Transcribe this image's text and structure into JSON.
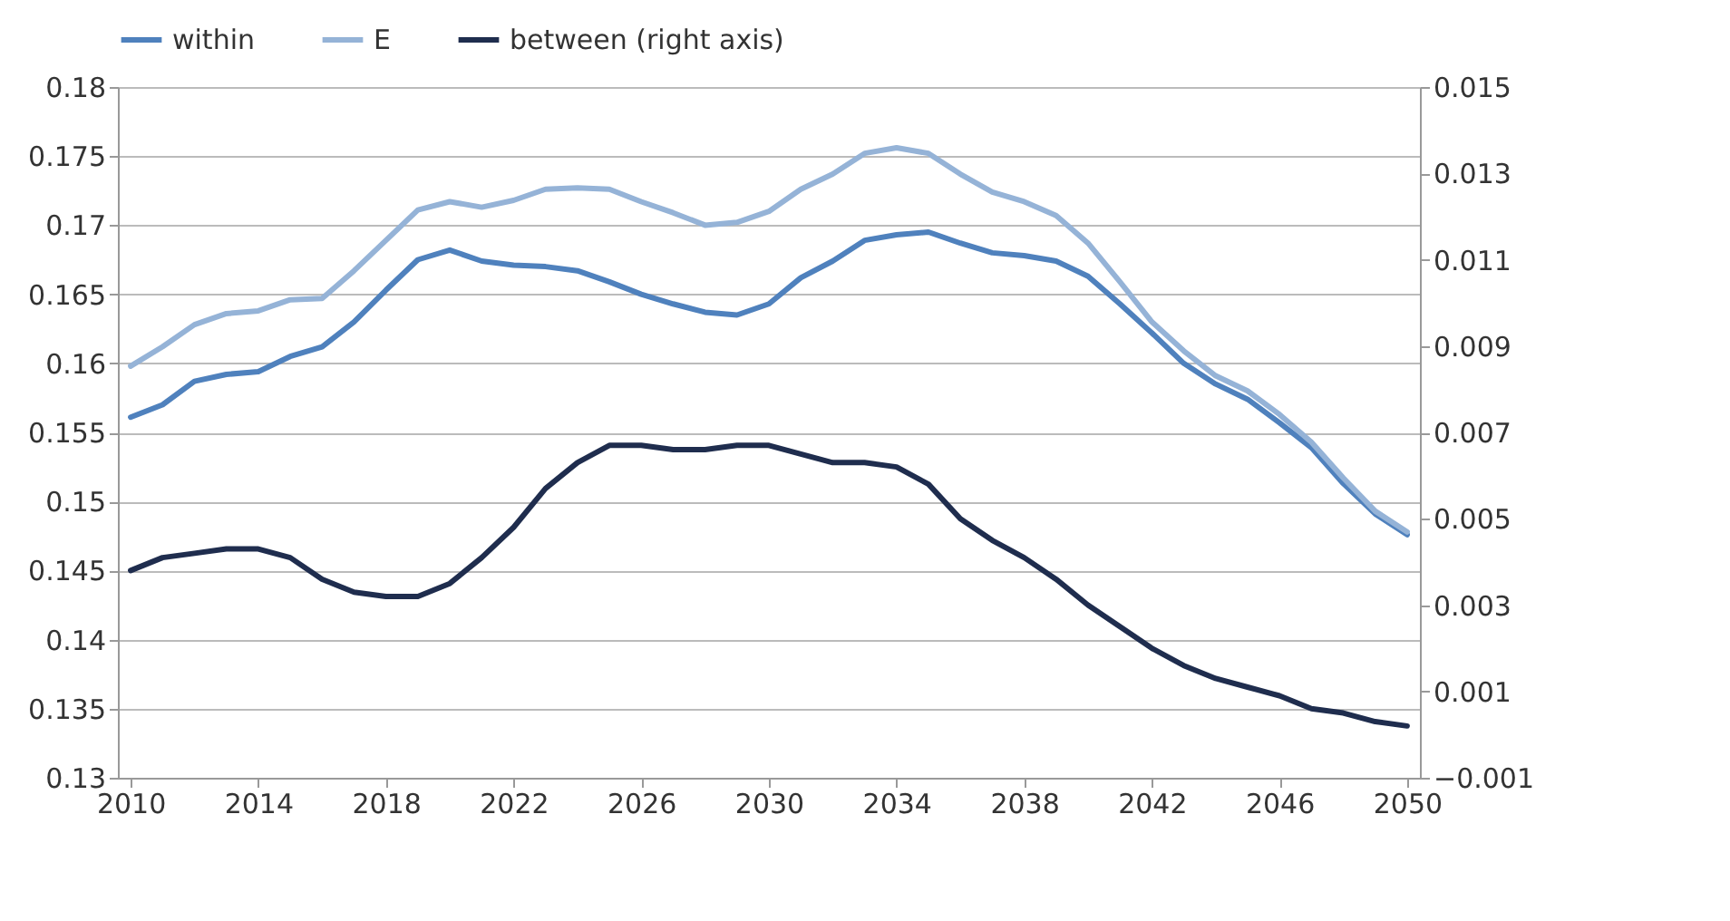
{
  "chart_data": {
    "type": "line",
    "x": [
      2010,
      2011,
      2012,
      2013,
      2014,
      2015,
      2016,
      2017,
      2018,
      2019,
      2020,
      2021,
      2022,
      2023,
      2024,
      2025,
      2026,
      2027,
      2028,
      2029,
      2030,
      2031,
      2032,
      2033,
      2034,
      2035,
      2036,
      2037,
      2038,
      2039,
      2040,
      2041,
      2042,
      2043,
      2044,
      2045,
      2046,
      2047,
      2048,
      2049,
      2050
    ],
    "series": [
      {
        "name": "within",
        "color": "#4f81bd",
        "values": [
          0.1561,
          0.157,
          0.1587,
          0.1592,
          0.1594,
          0.1605,
          0.1612,
          0.163,
          0.1653,
          0.1675,
          0.1682,
          0.1674,
          0.1671,
          0.167,
          0.1667,
          0.1659,
          0.165,
          0.1643,
          0.1637,
          0.1635,
          0.1643,
          0.1662,
          0.1674,
          0.1689,
          0.1693,
          0.1695,
          0.1687,
          0.168,
          0.1678,
          0.1674,
          0.1663,
          0.1643,
          0.1622,
          0.16,
          0.1585,
          0.1574,
          0.1557,
          0.1539,
          0.1513,
          0.1491,
          0.1476
        ]
      },
      {
        "name": "E",
        "color": "#95b3d7",
        "values": [
          0.1598,
          0.1612,
          0.1628,
          0.1636,
          0.1638,
          0.1646,
          0.1647,
          0.1667,
          0.1689,
          0.1711,
          0.1717,
          0.1713,
          0.1718,
          0.1726,
          0.1727,
          0.1726,
          0.1717,
          0.1709,
          0.17,
          0.1702,
          0.171,
          0.1726,
          0.1737,
          0.1752,
          0.1756,
          0.1752,
          0.1737,
          0.1724,
          0.1717,
          0.1707,
          0.1687,
          0.1659,
          0.163,
          0.1609,
          0.1591,
          0.158,
          0.1563,
          0.1543,
          0.1517,
          0.1493,
          0.1478
        ]
      },
      {
        "name": "between (right axis)",
        "color": "#1f2d4e",
        "axis": "y2",
        "values": [
          0.0038,
          0.0041,
          0.0042,
          0.0043,
          0.0043,
          0.0041,
          0.0036,
          0.0033,
          0.0032,
          0.0032,
          0.0035,
          0.0041,
          0.0048,
          0.0057,
          0.0063,
          0.0067,
          0.0067,
          0.0066,
          0.0066,
          0.0067,
          0.0067,
          0.0065,
          0.0063,
          0.0063,
          0.0062,
          0.0058,
          0.005,
          0.0045,
          0.0041,
          0.0036,
          0.003,
          0.0025,
          0.002,
          0.0016,
          0.0013,
          0.0011,
          0.0009,
          0.0006,
          0.0005,
          0.0003,
          0.0002
        ]
      }
    ],
    "xlim": [
      2009.6,
      2050.4
    ],
    "xticks": [
      2010,
      2014,
      2018,
      2022,
      2026,
      2030,
      2034,
      2038,
      2042,
      2046,
      2050
    ],
    "ylim": [
      0.13,
      0.18
    ],
    "yticks": [
      0.13,
      0.135,
      0.14,
      0.145,
      0.15,
      0.155,
      0.16,
      0.165,
      0.17,
      0.175,
      0.18
    ],
    "y2lim": [
      -0.001,
      0.015
    ],
    "y2ticks": [
      -0.001,
      0.001,
      0.003,
      0.005,
      0.007,
      0.009,
      0.011,
      0.013,
      0.015
    ],
    "grid": "y",
    "legend": "top",
    "marker": "none",
    "line_style": "solid"
  }
}
